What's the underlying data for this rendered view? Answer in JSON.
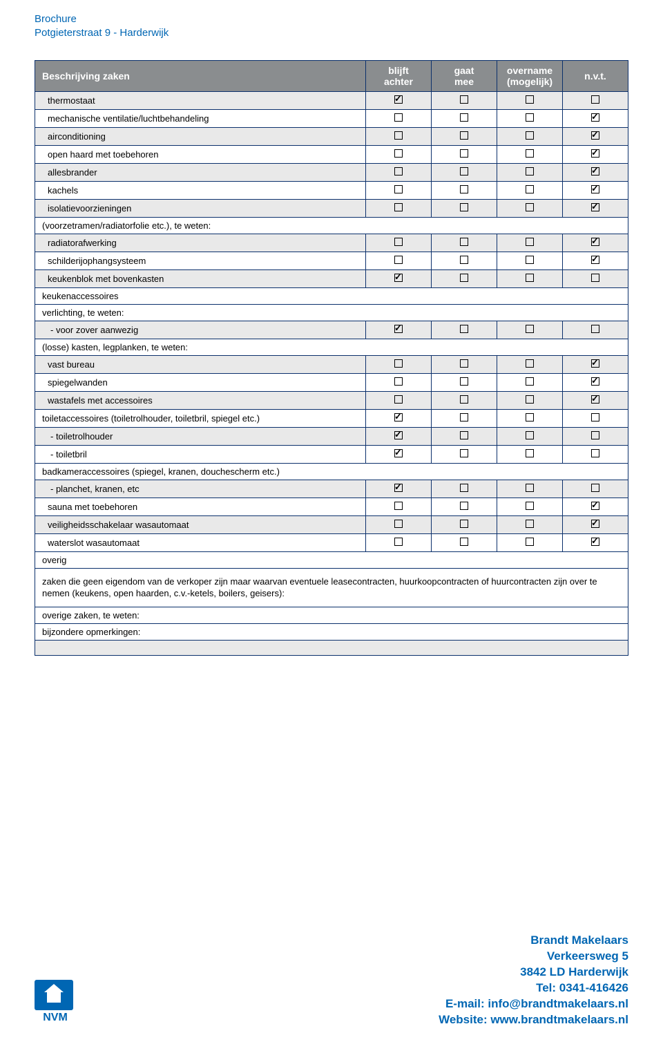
{
  "header": {
    "line1": "Brochure",
    "line2": "Potgieterstraat 9 - Harderwijk"
  },
  "columns": {
    "desc": "Beschrijving zaken",
    "c1a": "blijft",
    "c1b": "achter",
    "c2a": "gaat",
    "c2b": "mee",
    "c3a": "overname",
    "c3b": "(mogelijk)",
    "c4": "n.v.t."
  },
  "rows": [
    {
      "label": "thermostaat",
      "alt": true,
      "indent": "item",
      "boxes": [
        "checked",
        "empty",
        "empty",
        "empty"
      ]
    },
    {
      "label": "mechanische ventilatie/luchtbehandeling",
      "alt": false,
      "indent": "item",
      "boxes": [
        "empty",
        "empty",
        "empty",
        "checked"
      ]
    },
    {
      "label": "airconditioning",
      "alt": true,
      "indent": "item",
      "boxes": [
        "empty",
        "empty",
        "empty",
        "checked"
      ]
    },
    {
      "label": "open haard met toebehoren",
      "alt": false,
      "indent": "item",
      "boxes": [
        "empty",
        "empty",
        "empty",
        "checked"
      ]
    },
    {
      "label": "allesbrander",
      "alt": true,
      "indent": "item",
      "boxes": [
        "empty",
        "empty",
        "empty",
        "checked"
      ]
    },
    {
      "label": "kachels",
      "alt": false,
      "indent": "item",
      "boxes": [
        "empty",
        "empty",
        "empty",
        "checked"
      ]
    },
    {
      "label": "isolatievoorzieningen",
      "alt": true,
      "indent": "item",
      "boxes": [
        "empty",
        "empty",
        "empty",
        "checked"
      ]
    },
    {
      "label": "(voorzetramen/radiatorfolie etc.), te weten:",
      "alt": false,
      "indent": "section",
      "boxes": null
    },
    {
      "label": "radiatorafwerking",
      "alt": true,
      "indent": "item",
      "boxes": [
        "empty",
        "empty",
        "empty",
        "checked"
      ]
    },
    {
      "label": "schilderijophangsysteem",
      "alt": false,
      "indent": "item",
      "boxes": [
        "empty",
        "empty",
        "empty",
        "checked"
      ]
    },
    {
      "label": "keukenblok met bovenkasten",
      "alt": true,
      "indent": "item",
      "boxes": [
        "checked",
        "empty",
        "empty",
        "empty"
      ]
    },
    {
      "label": "keukenaccessoires",
      "alt": false,
      "indent": "section",
      "boxes": null
    },
    {
      "label": "verlichting, te weten:",
      "alt": false,
      "indent": "section",
      "boxes": null
    },
    {
      "label": "- voor zover aanwezig",
      "alt": true,
      "indent": "sub",
      "boxes": [
        "checked",
        "empty",
        "empty",
        "empty"
      ]
    },
    {
      "label": "(losse) kasten, legplanken, te weten:",
      "alt": false,
      "indent": "section",
      "boxes": null
    },
    {
      "label": "vast bureau",
      "alt": true,
      "indent": "item",
      "boxes": [
        "empty",
        "empty",
        "empty",
        "checked"
      ]
    },
    {
      "label": "spiegelwanden",
      "alt": false,
      "indent": "item",
      "boxes": [
        "empty",
        "empty",
        "empty",
        "checked"
      ]
    },
    {
      "label": "wastafels met accessoires",
      "alt": true,
      "indent": "item",
      "boxes": [
        "empty",
        "empty",
        "empty",
        "checked"
      ]
    },
    {
      "label": "toiletaccessoires (toiletrolhouder, toiletbril, spiegel etc.)",
      "alt": false,
      "indent": "section",
      "boxes": [
        "checked",
        "empty",
        "empty",
        "empty"
      ]
    },
    {
      "label": "- toiletrolhouder",
      "alt": true,
      "indent": "sub",
      "boxes": [
        "checked",
        "empty",
        "empty",
        "empty"
      ]
    },
    {
      "label": "- toiletbril",
      "alt": false,
      "indent": "sub",
      "boxes": [
        "checked",
        "empty",
        "empty",
        "empty"
      ]
    },
    {
      "label": "badkameraccessoires (spiegel, kranen, douchescherm etc.)",
      "alt": false,
      "indent": "section",
      "boxes": null
    },
    {
      "label": "- planchet, kranen, etc",
      "alt": true,
      "indent": "sub",
      "boxes": [
        "checked",
        "empty",
        "empty",
        "empty"
      ]
    },
    {
      "label": "sauna met toebehoren",
      "alt": false,
      "indent": "item",
      "boxes": [
        "empty",
        "empty",
        "empty",
        "checked"
      ]
    },
    {
      "label": "veiligheidsschakelaar wasautomaat",
      "alt": true,
      "indent": "item",
      "boxes": [
        "empty",
        "empty",
        "empty",
        "checked"
      ]
    },
    {
      "label": "waterslot wasautomaat",
      "alt": false,
      "indent": "item",
      "boxes": [
        "empty",
        "empty",
        "empty",
        "checked"
      ]
    },
    {
      "label": "overig",
      "alt": false,
      "indent": "section",
      "boxes": null
    }
  ],
  "note": "zaken die geen eigendom van de verkoper zijn maar waarvan eventuele leasecontracten, huurkoopcontracten of huurcontracten zijn over te nemen (keukens, open haarden, c.v.-ketels, boilers, geisers):",
  "overige_label": "overige zaken, te weten:",
  "bijzondere_label": "bijzondere opmerkingen:",
  "footer": {
    "nvm": "NVM",
    "company": "Brandt Makelaars",
    "address": "Verkeersweg 5",
    "postal": "3842 LD Harderwijk",
    "tel": "Tel: 0341-416426",
    "email": "E-mail: info@brandtmakelaars.nl",
    "website": "Website: www.brandtmakelaars.nl"
  }
}
